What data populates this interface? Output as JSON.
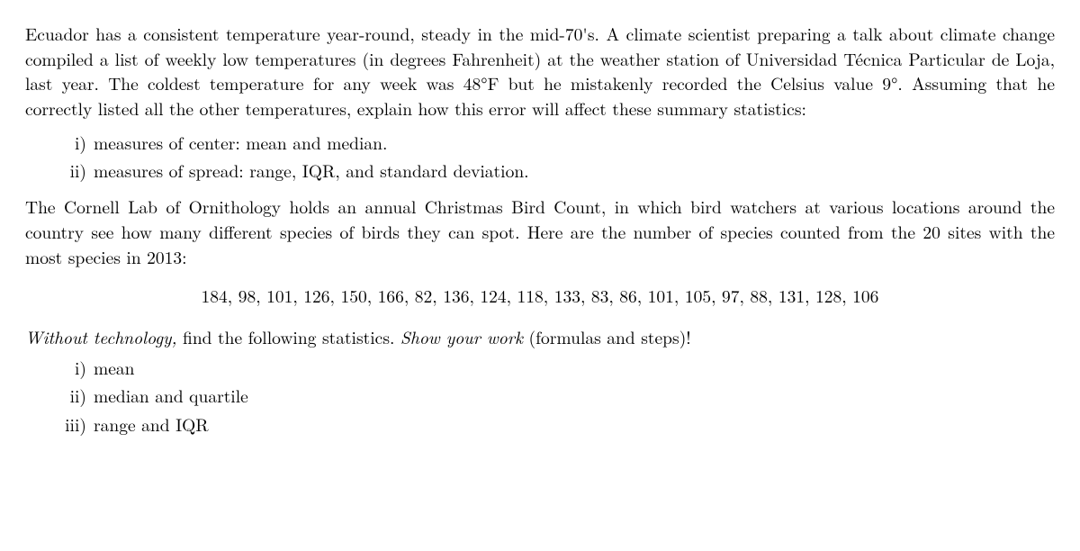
{
  "q1": {
    "para": "Ecuador has a consistent temperature year-round, steady in the mid-70's. A climate scientist preparing a talk about climate change compiled a list of weekly low temperatures (in degrees Fahrenheit) at the weather station of Universidad Técnica Particular de Loja, last year. The coldest temperature for any week was 48°F but he mistakenly recorded the Celsius value 9°. Assuming that he correctly listed all the other temperatures, explain how this error will affect these summary statistics:",
    "items": [
      {
        "num": "i)",
        "text": "measures of center: mean and median."
      },
      {
        "num": "ii)",
        "text": "measures of spread: range, IQR, and standard deviation."
      }
    ]
  },
  "q2": {
    "para": "The Cornell Lab of Ornithology holds an annual Christmas Bird Count, in which bird watchers at various locations around the country see how many different species of birds they can spot. Here are the number of species counted from the 20 sites with the most species in 2013:",
    "data": "184, 98, 101, 126, 150, 166, 82, 136, 124, 118, 133, 83, 86, 101, 105, 97, 88, 131, 128, 106",
    "instruction_pre": "Without technology,",
    "instruction_mid": " find the following statistics. ",
    "instruction_em": "Show your work",
    "instruction_post": " (formulas and steps)!",
    "items": [
      {
        "num": "i)",
        "text": "mean"
      },
      {
        "num": "ii)",
        "text": "median and quartile"
      },
      {
        "num": "iii)",
        "text": "range and IQR"
      }
    ]
  }
}
